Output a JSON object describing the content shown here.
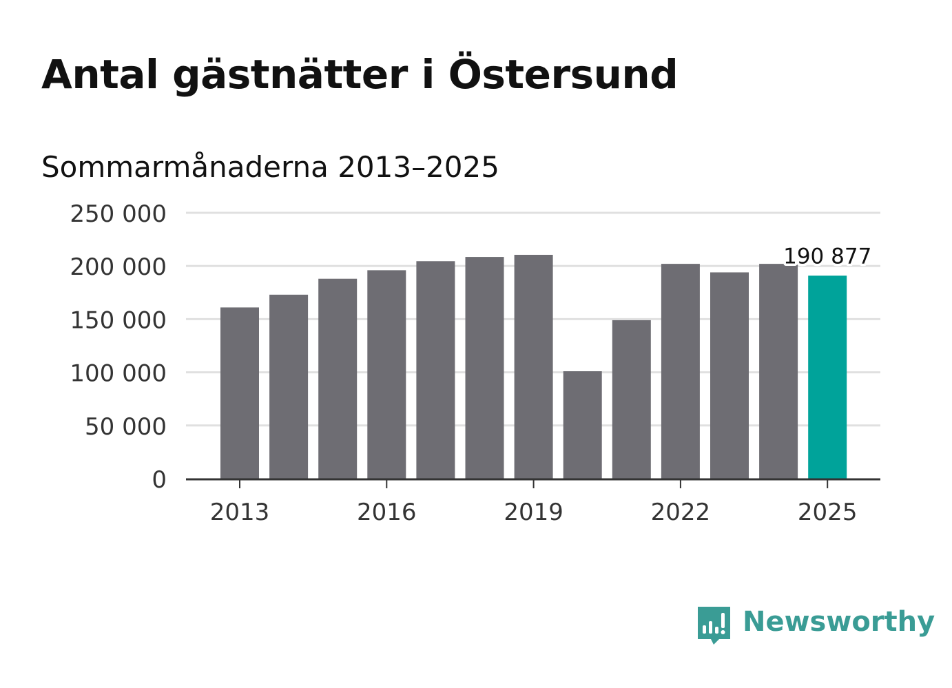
{
  "title": "Antal gästnätter i Östersund",
  "subtitle": "Sommarmånaderna 2013–2025",
  "brand": {
    "name": "Newsworthy",
    "color": "#3a9c95"
  },
  "colors": {
    "bar": "#6e6d73",
    "highlight": "#00a39a",
    "grid": "#e0e0e0",
    "axis": "#333333",
    "text": "#333333"
  },
  "chart_data": {
    "type": "bar",
    "title": "Antal gästnätter i Östersund",
    "subtitle": "Sommarmånaderna 2013–2025",
    "categories": [
      "2013",
      "2014",
      "2015",
      "2016",
      "2017",
      "2018",
      "2019",
      "2020",
      "2021",
      "2022",
      "2023",
      "2024",
      "2025"
    ],
    "values": [
      161000,
      173000,
      188000,
      196000,
      204500,
      208500,
      210500,
      101000,
      149000,
      202000,
      194000,
      202000,
      190877
    ],
    "highlight_index": 12,
    "annotation": {
      "index": 12,
      "text": "190 877"
    },
    "ylim": [
      0,
      250000
    ],
    "yticks": [
      0,
      50000,
      100000,
      150000,
      200000,
      250000
    ],
    "ytick_labels": [
      "0",
      "50 000",
      "100 000",
      "150 000",
      "200 000",
      "250 000"
    ],
    "xtick_labels": [
      "2013",
      "2016",
      "2019",
      "2022",
      "2025"
    ],
    "xtick_indices": [
      0,
      3,
      6,
      9,
      12
    ],
    "grid": true,
    "legend": "none"
  }
}
